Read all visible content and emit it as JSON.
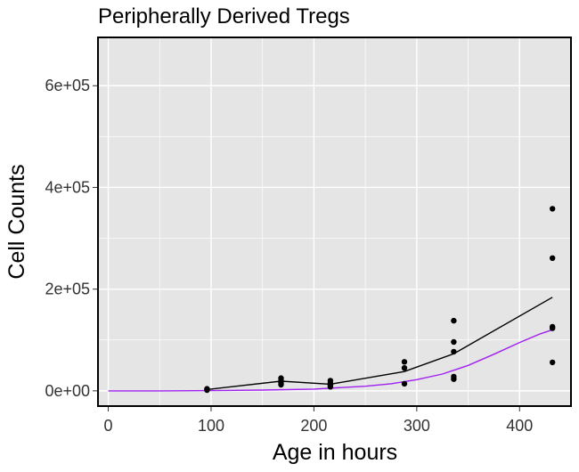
{
  "chart_data": {
    "type": "scatter",
    "title": "Peripherally Derived Tregs",
    "xlabel": "Age in hours",
    "ylabel": "Cell Counts",
    "xlim": [
      -10,
      450
    ],
    "ylim": [
      -30000,
      695000
    ],
    "x_ticks": [
      0,
      100,
      200,
      300,
      400
    ],
    "x_tick_labels": [
      "0",
      "100",
      "200",
      "300",
      "400"
    ],
    "y_ticks": [
      0,
      200000,
      400000,
      600000
    ],
    "y_tick_labels": [
      "0e+00",
      "2e+05",
      "4e+05",
      "6e+05"
    ],
    "grid": true,
    "colors": {
      "panel": "#e5e5e5",
      "grid": "#ffffff",
      "points": "#000000",
      "mean_line": "#000000",
      "model_line": "#a020f0"
    },
    "points": {
      "x": [
        96,
        96,
        168,
        168,
        168,
        168,
        216,
        216,
        216,
        216,
        288,
        288,
        288,
        336,
        336,
        336,
        336,
        336,
        432,
        432,
        432,
        432,
        432
      ],
      "y": [
        4000,
        1500,
        25000,
        20000,
        16000,
        12000,
        20000,
        15000,
        11000,
        8000,
        57000,
        45000,
        14000,
        138000,
        96000,
        77000,
        28000,
        23000,
        358000,
        261000,
        126000,
        123000,
        56000
      ]
    },
    "series": [
      {
        "type": "line",
        "x": [
          96,
          168,
          216,
          288,
          336,
          432
        ],
        "y": [
          2500,
          19000,
          13000,
          38000,
          73000,
          184000
        ]
      },
      {
        "type": "line",
        "x": [
          0,
          50,
          100,
          150,
          200,
          250,
          275,
          300,
          325,
          350,
          375,
          400,
          420,
          432
        ],
        "y": [
          0,
          0,
          500,
          1500,
          3500,
          9000,
          14000,
          22000,
          33000,
          50000,
          72000,
          95000,
          112000,
          120000
        ]
      }
    ]
  }
}
